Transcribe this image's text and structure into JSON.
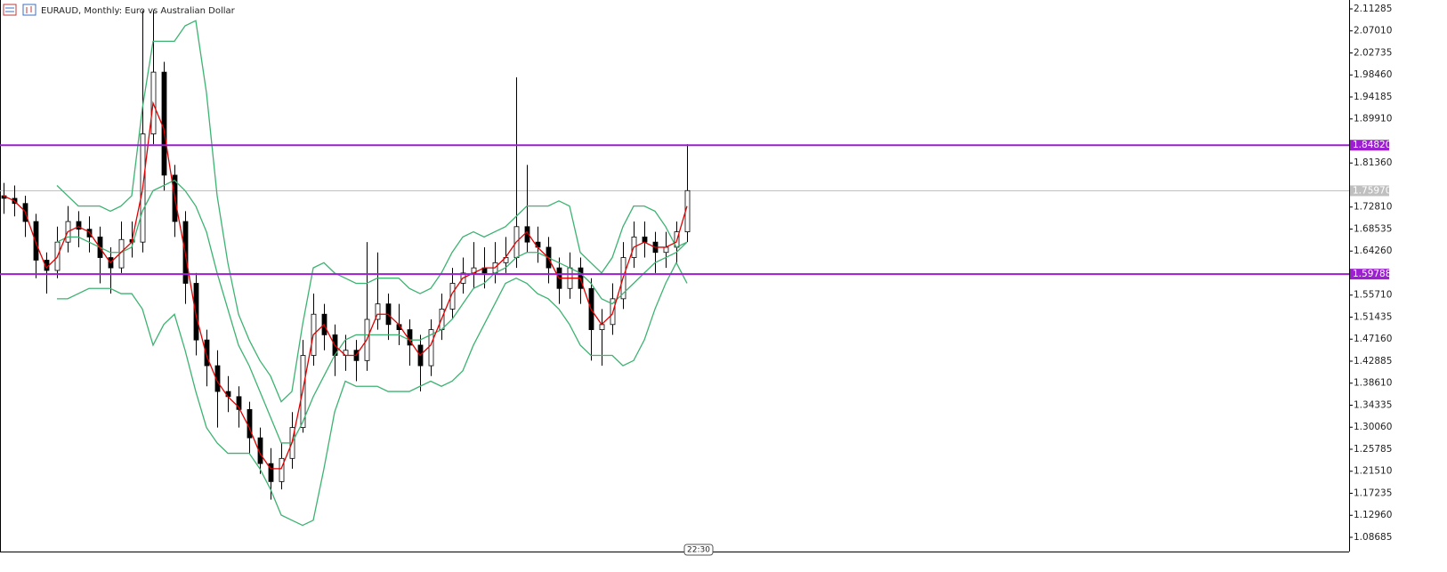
{
  "chart_data": {
    "type": "candlestick",
    "title": "EURAUD, Monthly:  Euro vs Australian Dollar",
    "ylim": [
      1.0592,
      2.1301
    ],
    "yticks": [
      {
        "value": 2.11285,
        "label": "2.11285"
      },
      {
        "value": 2.0701,
        "label": "2.07010"
      },
      {
        "value": 2.02735,
        "label": "2.02735"
      },
      {
        "value": 1.9846,
        "label": "1.98460"
      },
      {
        "value": 1.94185,
        "label": "1.94185"
      },
      {
        "value": 1.8991,
        "label": "1.89910"
      },
      {
        "value": 1.8136,
        "label": "1.81360"
      },
      {
        "value": 1.7281,
        "label": "1.72810"
      },
      {
        "value": 1.68535,
        "label": "1.68535"
      },
      {
        "value": 1.6426,
        "label": "1.64260"
      },
      {
        "value": 1.5571,
        "label": "1.55710"
      },
      {
        "value": 1.51435,
        "label": "1.51435"
      },
      {
        "value": 1.4716,
        "label": "1.47160"
      },
      {
        "value": 1.42885,
        "label": "1.42885"
      },
      {
        "value": 1.3861,
        "label": "1.38610"
      },
      {
        "value": 1.34335,
        "label": "1.34335"
      },
      {
        "value": 1.3006,
        "label": "1.30060"
      },
      {
        "value": 1.25785,
        "label": "1.25785"
      },
      {
        "value": 1.2151,
        "label": "1.21510"
      },
      {
        "value": 1.17235,
        "label": "1.17235"
      },
      {
        "value": 1.1296,
        "label": "1.12960"
      },
      {
        "value": 1.08685,
        "label": "1.08685"
      }
    ],
    "open": [
      1.75,
      1.745,
      1.735,
      1.7,
      1.625,
      1.605,
      1.66,
      1.7,
      1.685,
      1.67,
      1.63,
      1.61,
      1.665,
      1.66,
      1.87,
      1.99,
      1.79,
      1.7,
      1.58,
      1.47,
      1.42,
      1.37,
      1.36,
      1.335,
      1.28,
      1.23,
      1.195,
      1.24,
      1.3,
      1.44,
      1.52,
      1.48,
      1.44,
      1.45,
      1.43,
      1.51,
      1.54,
      1.5,
      1.49,
      1.46,
      1.42,
      1.49,
      1.53,
      1.58,
      1.6,
      1.61,
      1.6,
      1.62,
      1.63,
      1.69,
      1.66,
      1.65,
      1.61,
      1.57,
      1.61,
      1.57,
      1.49,
      1.5,
      1.55,
      1.63,
      1.67,
      1.66,
      1.64,
      1.65,
      1.68
    ],
    "high": [
      1.775,
      1.77,
      1.75,
      1.715,
      1.64,
      1.69,
      1.73,
      1.72,
      1.71,
      1.69,
      1.65,
      1.7,
      1.7,
      2.11,
      2.11,
      2.01,
      1.81,
      1.72,
      1.6,
      1.49,
      1.45,
      1.4,
      1.38,
      1.35,
      1.3,
      1.26,
      1.27,
      1.33,
      1.47,
      1.56,
      1.54,
      1.5,
      1.48,
      1.47,
      1.66,
      1.64,
      1.56,
      1.54,
      1.51,
      1.48,
      1.51,
      1.56,
      1.61,
      1.63,
      1.66,
      1.65,
      1.66,
      1.67,
      1.98,
      1.81,
      1.69,
      1.67,
      1.63,
      1.64,
      1.63,
      1.59,
      1.53,
      1.58,
      1.66,
      1.7,
      1.7,
      1.68,
      1.68,
      1.7,
      1.85
    ],
    "low": [
      1.715,
      1.71,
      1.67,
      1.59,
      1.56,
      1.59,
      1.64,
      1.65,
      1.64,
      1.58,
      1.56,
      1.6,
      1.63,
      1.64,
      1.85,
      1.76,
      1.67,
      1.54,
      1.44,
      1.38,
      1.3,
      1.33,
      1.3,
      1.25,
      1.21,
      1.16,
      1.18,
      1.22,
      1.29,
      1.42,
      1.45,
      1.4,
      1.41,
      1.39,
      1.41,
      1.49,
      1.47,
      1.46,
      1.42,
      1.37,
      1.4,
      1.47,
      1.51,
      1.56,
      1.57,
      1.57,
      1.58,
      1.6,
      1.61,
      1.64,
      1.62,
      1.58,
      1.54,
      1.55,
      1.54,
      1.43,
      1.42,
      1.48,
      1.53,
      1.61,
      1.63,
      1.6,
      1.61,
      1.62,
      1.66
    ],
    "close": [
      1.745,
      1.735,
      1.7,
      1.625,
      1.605,
      1.66,
      1.7,
      1.685,
      1.67,
      1.63,
      1.61,
      1.665,
      1.66,
      1.87,
      1.99,
      1.79,
      1.7,
      1.58,
      1.47,
      1.42,
      1.37,
      1.36,
      1.335,
      1.28,
      1.23,
      1.195,
      1.24,
      1.3,
      1.44,
      1.52,
      1.48,
      1.44,
      1.45,
      1.43,
      1.51,
      1.54,
      1.5,
      1.49,
      1.46,
      1.42,
      1.49,
      1.53,
      1.58,
      1.6,
      1.61,
      1.6,
      1.62,
      1.63,
      1.69,
      1.66,
      1.65,
      1.61,
      1.57,
      1.61,
      1.57,
      1.49,
      1.5,
      1.55,
      1.63,
      1.67,
      1.66,
      1.64,
      1.65,
      1.68,
      1.76
    ],
    "series": [
      {
        "color": "#3cb371",
        "values": [
          null,
          null,
          null,
          null,
          null,
          1.77,
          1.75,
          1.73,
          1.73,
          1.73,
          1.72,
          1.73,
          1.75,
          1.92,
          2.05,
          2.05,
          2.05,
          2.08,
          2.09,
          1.95,
          1.75,
          1.62,
          1.52,
          1.47,
          1.43,
          1.4,
          1.35,
          1.37,
          1.5,
          1.61,
          1.62,
          1.6,
          1.59,
          1.58,
          1.58,
          1.59,
          1.59,
          1.59,
          1.57,
          1.56,
          1.57,
          1.6,
          1.64,
          1.67,
          1.68,
          1.67,
          1.68,
          1.69,
          1.71,
          1.73,
          1.73,
          1.73,
          1.74,
          1.73,
          1.64,
          1.62,
          1.6,
          1.63,
          1.69,
          1.73,
          1.73,
          1.72,
          1.69,
          1.65,
          1.66
        ]
      },
      {
        "color": "#3cb371",
        "values": [
          null,
          null,
          null,
          null,
          null,
          1.66,
          1.67,
          1.67,
          1.66,
          1.65,
          1.64,
          1.64,
          1.65,
          1.72,
          1.76,
          1.77,
          1.78,
          1.76,
          1.73,
          1.68,
          1.6,
          1.53,
          1.46,
          1.42,
          1.37,
          1.32,
          1.27,
          1.27,
          1.31,
          1.36,
          1.4,
          1.44,
          1.47,
          1.48,
          1.48,
          1.48,
          1.48,
          1.48,
          1.47,
          1.47,
          1.48,
          1.49,
          1.51,
          1.54,
          1.57,
          1.58,
          1.6,
          1.61,
          1.63,
          1.64,
          1.64,
          1.63,
          1.62,
          1.61,
          1.6,
          1.58,
          1.55,
          1.54,
          1.56,
          1.58,
          1.6,
          1.62,
          1.63,
          1.64,
          1.66
        ]
      },
      {
        "color": "#3cb371",
        "values": [
          null,
          null,
          null,
          null,
          null,
          1.55,
          1.55,
          1.56,
          1.57,
          1.57,
          1.57,
          1.56,
          1.56,
          1.53,
          1.46,
          1.5,
          1.52,
          1.45,
          1.37,
          1.3,
          1.27,
          1.25,
          1.25,
          1.25,
          1.22,
          1.18,
          1.13,
          1.12,
          1.11,
          1.12,
          1.22,
          1.33,
          1.39,
          1.38,
          1.38,
          1.38,
          1.37,
          1.37,
          1.37,
          1.38,
          1.39,
          1.38,
          1.39,
          1.41,
          1.46,
          1.5,
          1.54,
          1.58,
          1.59,
          1.58,
          1.56,
          1.55,
          1.53,
          1.5,
          1.46,
          1.44,
          1.44,
          1.44,
          1.42,
          1.43,
          1.47,
          1.53,
          1.58,
          1.62,
          1.58
        ]
      },
      {
        "color": "#e00000",
        "values": [
          1.75,
          1.74,
          1.72,
          1.66,
          1.61,
          1.63,
          1.68,
          1.69,
          1.68,
          1.65,
          1.62,
          1.64,
          1.66,
          1.76,
          1.93,
          1.88,
          1.75,
          1.64,
          1.52,
          1.44,
          1.39,
          1.36,
          1.34,
          1.3,
          1.25,
          1.22,
          1.22,
          1.27,
          1.37,
          1.48,
          1.5,
          1.46,
          1.44,
          1.44,
          1.47,
          1.52,
          1.52,
          1.5,
          1.47,
          1.44,
          1.46,
          1.51,
          1.56,
          1.59,
          1.6,
          1.61,
          1.61,
          1.63,
          1.66,
          1.68,
          1.65,
          1.63,
          1.59,
          1.59,
          1.59,
          1.53,
          1.5,
          1.52,
          1.59,
          1.65,
          1.66,
          1.65,
          1.65,
          1.66,
          1.73
        ]
      }
    ],
    "levels": [
      {
        "value": 1.8482,
        "label": "1.84820",
        "color": "#9c1fd0"
      },
      {
        "value": 1.59788,
        "label": "1.59788",
        "color": "#9c1fd0"
      }
    ],
    "current_price": {
      "value": 1.7597,
      "label": "1.75970",
      "color": "#c0c0c0"
    },
    "time_label": "22:30"
  }
}
